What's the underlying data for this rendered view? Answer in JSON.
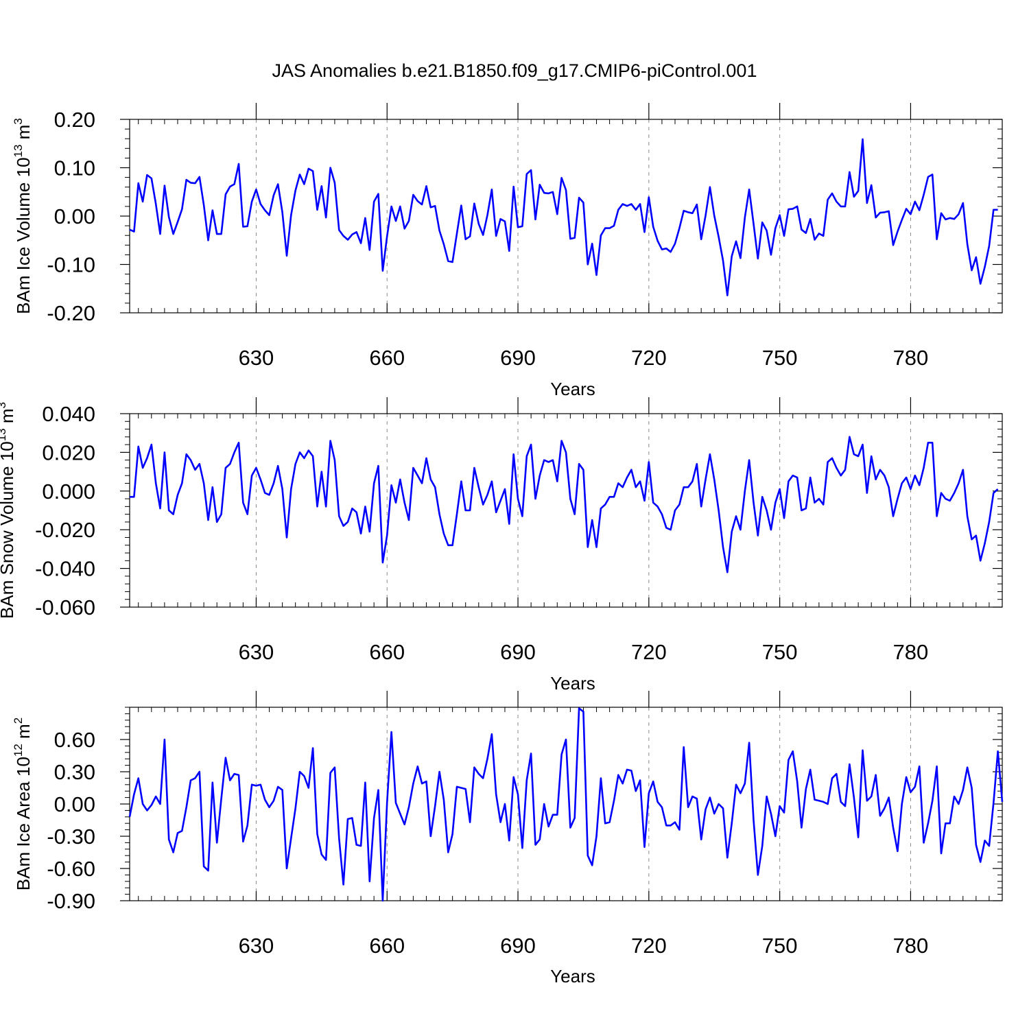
{
  "title": "JAS Anomalies b.e21.B1850.f09_g17.CMIP6-piControl.001",
  "colors": {
    "line": "#0000ff",
    "axis": "#000000",
    "grid": "#888888"
  },
  "chart_data": [
    {
      "type": "line",
      "title": "",
      "xlabel": "Years",
      "ylabel": "BAm Ice Volume 10",
      "ylabel_exponent": "13",
      "ylabel_unit": " m",
      "ylabel_unit_exponent": "3",
      "xlim": [
        601,
        801
      ],
      "ylim": [
        -0.2,
        0.2
      ],
      "x_ticks": [
        630,
        660,
        690,
        720,
        750,
        780
      ],
      "x_tick_labels": [
        "630",
        "660",
        "690",
        "720",
        "750",
        "780"
      ],
      "y_ticks": [
        -0.2,
        -0.1,
        0.0,
        0.1,
        0.2
      ],
      "y_tick_labels": [
        "-0.20",
        "-0.10",
        "0.00",
        "0.10",
        "0.20"
      ],
      "grid": "vertical dashed at x ticks",
      "x_start": 601,
      "values": [
        -0.028,
        -0.032,
        0.068,
        0.03,
        0.085,
        0.078,
        0.025,
        -0.037,
        0.063,
        -0.002,
        -0.037,
        -0.012,
        0.014,
        0.075,
        0.069,
        0.068,
        0.081,
        0.023,
        -0.05,
        0.012,
        -0.037,
        -0.037,
        0.045,
        0.061,
        0.066,
        0.108,
        -0.022,
        -0.021,
        0.03,
        0.055,
        0.025,
        0.012,
        0.002,
        0.043,
        0.066,
        0.008,
        -0.082,
        0.002,
        0.053,
        0.086,
        0.066,
        0.098,
        0.093,
        0.013,
        0.062,
        -0.003,
        0.1,
        0.069,
        -0.029,
        -0.041,
        -0.049,
        -0.038,
        -0.033,
        -0.056,
        -0.004,
        -0.07,
        0.03,
        0.046,
        -0.113,
        -0.042,
        0.02,
        -0.01,
        0.02,
        -0.026,
        -0.01,
        0.044,
        0.031,
        0.024,
        0.062,
        0.018,
        0.021,
        -0.03,
        -0.058,
        -0.093,
        -0.095,
        -0.036,
        0.022,
        -0.048,
        -0.042,
        0.026,
        -0.016,
        -0.039,
        0.002,
        0.055,
        -0.041,
        -0.006,
        -0.011,
        -0.072,
        0.061,
        -0.023,
        -0.021,
        0.087,
        0.095,
        -0.007,
        0.065,
        0.048,
        0.047,
        0.05,
        0.004,
        0.079,
        0.054,
        -0.047,
        -0.045,
        0.038,
        0.028,
        -0.1,
        -0.057,
        -0.122,
        -0.04,
        -0.025,
        -0.025,
        -0.02,
        0.013,
        0.025,
        0.021,
        0.025,
        0.013,
        0.025,
        -0.033,
        0.039,
        -0.022,
        -0.051,
        -0.069,
        -0.067,
        -0.074,
        -0.057,
        -0.025,
        0.011,
        0.008,
        0.006,
        0.024,
        -0.048,
        0.001,
        0.06,
        0.001,
        -0.043,
        -0.092,
        -0.164,
        -0.083,
        -0.052,
        -0.087,
        -0.003,
        0.055,
        -0.016,
        -0.088,
        -0.013,
        -0.03,
        -0.08,
        -0.025,
        0.002,
        -0.041,
        0.014,
        0.015,
        0.02,
        -0.028,
        -0.035,
        -0.006,
        -0.049,
        -0.036,
        -0.041,
        0.034,
        0.047,
        0.03,
        0.02,
        0.02,
        0.091,
        0.04,
        0.052,
        0.159,
        0.027,
        0.064,
        -0.003,
        0.007,
        0.008,
        0.01,
        -0.06,
        -0.032,
        -0.008,
        0.015,
        0.004,
        0.03,
        0.012,
        0.044,
        0.081,
        0.086,
        -0.048,
        0.006,
        -0.007,
        -0.004,
        -0.006,
        0.004,
        0.027,
        -0.058,
        -0.112,
        -0.085,
        -0.14,
        -0.105,
        -0.062,
        0.013,
        0.013
      ]
    },
    {
      "type": "line",
      "title": "",
      "xlabel": "Years",
      "ylabel": "BAm Snow Volume 10",
      "ylabel_exponent": "13",
      "ylabel_unit": " m",
      "ylabel_unit_exponent": "3",
      "xlim": [
        601,
        801
      ],
      "ylim": [
        -0.06,
        0.04
      ],
      "x_ticks": [
        630,
        660,
        690,
        720,
        750,
        780
      ],
      "x_tick_labels": [
        "630",
        "660",
        "690",
        "720",
        "750",
        "780"
      ],
      "y_ticks": [
        -0.06,
        -0.04,
        -0.02,
        0.0,
        0.02,
        0.04
      ],
      "y_tick_labels": [
        "-0.060",
        "-0.040",
        "-0.020",
        "0.000",
        "0.020",
        "0.040"
      ],
      "grid": "vertical dashed at x ticks",
      "x_start": 601,
      "values": [
        -0.003,
        -0.003,
        0.023,
        0.012,
        0.017,
        0.024,
        0.004,
        -0.009,
        0.02,
        -0.01,
        -0.012,
        -0.002,
        0.004,
        0.019,
        0.016,
        0.011,
        0.014,
        0.004,
        -0.015,
        0.002,
        -0.016,
        -0.012,
        0.012,
        0.014,
        0.02,
        0.025,
        -0.006,
        -0.012,
        0.008,
        0.012,
        0.006,
        -0.001,
        -0.002,
        0.004,
        0.013,
        0.001,
        -0.024,
        0.001,
        0.014,
        0.02,
        0.017,
        0.021,
        0.018,
        -0.008,
        0.01,
        -0.008,
        0.026,
        0.016,
        -0.013,
        -0.018,
        -0.016,
        -0.009,
        -0.011,
        -0.022,
        -0.008,
        -0.021,
        0.004,
        0.013,
        -0.037,
        -0.023,
        0.003,
        -0.006,
        0.006,
        -0.006,
        -0.015,
        0.012,
        0.008,
        0.004,
        0.017,
        0.006,
        0.002,
        -0.012,
        -0.022,
        -0.028,
        -0.028,
        -0.012,
        0.005,
        -0.01,
        -0.01,
        0.012,
        0.002,
        -0.007,
        -0.002,
        0.005,
        -0.011,
        -0.005,
        0.001,
        -0.017,
        0.019,
        -0.004,
        -0.013,
        0.018,
        0.024,
        -0.004,
        0.008,
        0.016,
        0.015,
        0.016,
        0.005,
        0.026,
        0.02,
        -0.004,
        -0.012,
        0.014,
        0.011,
        -0.029,
        -0.015,
        -0.029,
        -0.009,
        -0.007,
        -0.003,
        -0.003,
        0.004,
        0.002,
        0.007,
        0.011,
        0.002,
        0.005,
        -0.005,
        0.015,
        -0.006,
        -0.008,
        -0.012,
        -0.019,
        -0.02,
        -0.01,
        -0.007,
        0.002,
        0.002,
        0.005,
        0.014,
        -0.008,
        0.006,
        0.019,
        0.006,
        -0.01,
        -0.029,
        -0.042,
        -0.021,
        -0.013,
        -0.02,
        0.0,
        0.016,
        -0.006,
        -0.023,
        -0.003,
        -0.01,
        -0.02,
        -0.006,
        0.001,
        -0.014,
        0.005,
        0.008,
        0.007,
        -0.01,
        -0.009,
        0.007,
        -0.006,
        -0.004,
        -0.007,
        0.015,
        0.017,
        0.012,
        0.008,
        0.011,
        0.028,
        0.019,
        0.018,
        0.024,
        -0.001,
        0.018,
        0.006,
        0.011,
        0.008,
        0.002,
        -0.013,
        -0.004,
        0.004,
        0.007,
        0.001,
        0.008,
        0.003,
        0.012,
        0.025,
        0.025,
        -0.013,
        -0.001,
        -0.004,
        -0.005,
        -0.001,
        0.004,
        0.011,
        -0.013,
        -0.025,
        -0.023,
        -0.036,
        -0.027,
        -0.016,
        -0.001,
        0.001
      ]
    },
    {
      "type": "line",
      "title": "",
      "xlabel": "Years",
      "ylabel": "BAm Ice Area 10",
      "ylabel_exponent": "12",
      "ylabel_unit": " m",
      "ylabel_unit_exponent": "2",
      "xlim": [
        601,
        801
      ],
      "ylim": [
        -0.9,
        0.9
      ],
      "x_ticks": [
        630,
        660,
        690,
        720,
        750,
        780
      ],
      "x_tick_labels": [
        "630",
        "660",
        "690",
        "720",
        "750",
        "780"
      ],
      "y_ticks": [
        -0.9,
        -0.6,
        -0.3,
        0.0,
        0.3,
        0.6
      ],
      "y_tick_labels": [
        "-0.90",
        "-0.60",
        "-0.30",
        "0.00",
        "0.30",
        "0.60"
      ],
      "grid": "vertical dashed at x ticks",
      "x_start": 601,
      "values": [
        -0.12,
        0.09,
        0.24,
        0.0,
        -0.06,
        -0.01,
        0.07,
        0.0,
        0.6,
        -0.33,
        -0.45,
        -0.27,
        -0.25,
        -0.03,
        0.22,
        0.24,
        0.3,
        -0.58,
        -0.62,
        0.2,
        -0.36,
        0.05,
        0.43,
        0.22,
        0.28,
        0.27,
        -0.35,
        -0.2,
        0.18,
        0.17,
        0.18,
        0.04,
        -0.03,
        0.03,
        0.16,
        0.13,
        -0.6,
        -0.32,
        -0.04,
        0.3,
        0.26,
        0.15,
        0.52,
        -0.28,
        -0.47,
        -0.52,
        0.29,
        0.34,
        -0.32,
        -0.75,
        -0.14,
        -0.13,
        -0.38,
        -0.39,
        0.2,
        -0.72,
        -0.13,
        0.13,
        -0.9,
        0.01,
        0.67,
        0.01,
        -0.09,
        -0.19,
        -0.03,
        0.19,
        0.35,
        0.19,
        0.21,
        -0.3,
        -0.02,
        0.3,
        0.04,
        -0.45,
        -0.28,
        0.16,
        0.15,
        0.14,
        -0.17,
        0.34,
        0.28,
        0.24,
        0.42,
        0.65,
        0.09,
        -0.17,
        0.0,
        -0.34,
        0.25,
        0.09,
        -0.41,
        0.22,
        0.47,
        -0.38,
        -0.33,
        0.0,
        -0.21,
        -0.1,
        -0.1,
        0.46,
        0.6,
        -0.22,
        -0.13,
        0.89,
        0.86,
        -0.48,
        -0.57,
        -0.3,
        0.24,
        -0.18,
        -0.17,
        0.03,
        0.27,
        0.19,
        0.32,
        0.31,
        0.12,
        0.22,
        -0.4,
        0.1,
        0.21,
        0.02,
        -0.03,
        -0.2,
        -0.2,
        -0.17,
        -0.24,
        0.53,
        -0.03,
        0.07,
        0.05,
        -0.33,
        -0.05,
        0.06,
        -0.09,
        0.0,
        -0.04,
        -0.5,
        -0.18,
        0.18,
        0.1,
        0.19,
        0.57,
        -0.15,
        -0.66,
        -0.39,
        0.07,
        -0.09,
        -0.3,
        -0.02,
        -0.08,
        0.41,
        0.49,
        0.21,
        -0.22,
        0.14,
        0.32,
        0.04,
        0.03,
        0.02,
        0.0,
        0.24,
        0.28,
        0.02,
        -0.02,
        0.37,
        0.06,
        -0.31,
        0.5,
        0.03,
        0.07,
        0.27,
        -0.11,
        -0.04,
        0.06,
        -0.22,
        -0.44,
        0.0,
        0.25,
        0.11,
        0.16,
        0.35,
        -0.36,
        -0.18,
        0.03,
        0.35,
        -0.46,
        -0.18,
        -0.18,
        0.07,
        0.0,
        0.13,
        0.34,
        0.15,
        -0.38,
        -0.54,
        -0.34,
        -0.39,
        0.01,
        0.49,
        0.02
      ]
    }
  ]
}
